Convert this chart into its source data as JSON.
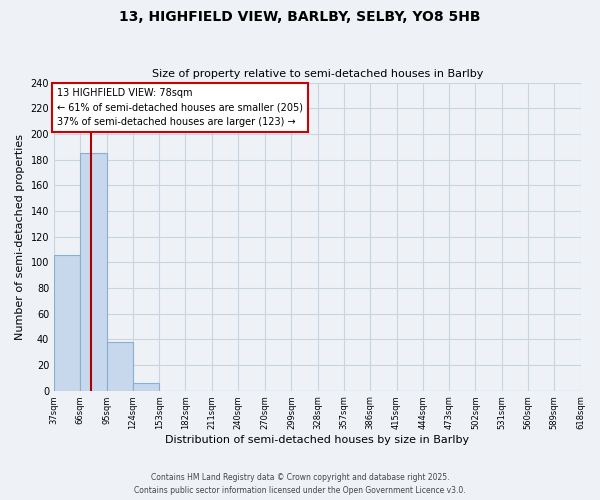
{
  "title": "13, HIGHFIELD VIEW, BARLBY, SELBY, YO8 5HB",
  "subtitle": "Size of property relative to semi-detached houses in Barlby",
  "xlabel": "Distribution of semi-detached houses by size in Barlby",
  "ylabel": "Number of semi-detached properties",
  "bar_values": [
    106,
    185,
    38,
    6,
    0,
    0,
    0,
    0,
    0,
    0,
    0,
    0,
    0,
    0,
    0,
    0,
    0,
    0,
    0,
    0
  ],
  "bin_edges": [
    37,
    66,
    95,
    124,
    153,
    182,
    211,
    240,
    270,
    299,
    328,
    357,
    386,
    415,
    444,
    473,
    502,
    531,
    560,
    589,
    618
  ],
  "bar_color": "#c8d8ec",
  "bar_edgecolor": "#8aaed0",
  "grid_color": "#c8d4e0",
  "background_color": "#eef2f7",
  "property_size": 78,
  "pct_smaller": 61,
  "count_smaller": 205,
  "pct_larger": 37,
  "count_larger": 123,
  "annotation_line1": "13 HIGHFIELD VIEW: 78sqm",
  "annotation_line2": "← 61% of semi-detached houses are smaller (205)",
  "annotation_line3": "37% of semi-detached houses are larger (123) →",
  "vline_color": "#aa0000",
  "annotation_box_edgecolor": "#cc0000",
  "ylim": [
    0,
    240
  ],
  "yticks": [
    0,
    20,
    40,
    60,
    80,
    100,
    120,
    140,
    160,
    180,
    200,
    220,
    240
  ],
  "footer_line1": "Contains HM Land Registry data © Crown copyright and database right 2025.",
  "footer_line2": "Contains public sector information licensed under the Open Government Licence v3.0."
}
